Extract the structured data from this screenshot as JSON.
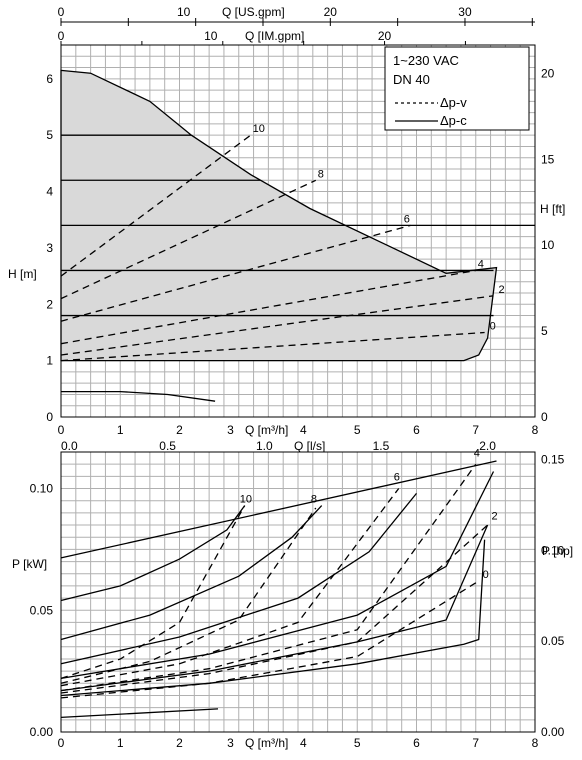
{
  "chart_data": [
    {
      "type": "line",
      "title": "",
      "legend": {
        "lines": [
          "1~230 VAC",
          "DN 40"
        ],
        "entries": [
          {
            "label": "Δp-v",
            "style": "dashed"
          },
          {
            "label": "Δp-c",
            "style": "solid"
          }
        ],
        "placement": "top-right"
      },
      "xlabel": "Q [m³/h]",
      "ylabel": "H [m]",
      "y2label": "H [ft]",
      "top_axes": [
        {
          "label": "Q [US.gpm]",
          "ticks": [
            "0",
            "10",
            "20",
            "30"
          ],
          "max": 35.2
        },
        {
          "label": "Q [IM.gpm]",
          "ticks": [
            "0",
            "10",
            "20"
          ],
          "max": 29.3
        }
      ],
      "xlim": [
        0,
        8
      ],
      "ylim": [
        0,
        6.6
      ],
      "x_ticks": [
        "0",
        "1",
        "2",
        "3",
        "4",
        "5",
        "6",
        "7",
        "8"
      ],
      "y_ticks": [
        "0",
        "1",
        "2",
        "3",
        "4",
        "5",
        "6"
      ],
      "y2_ticks": [
        "0",
        "5",
        "10",
        "15",
        "20"
      ],
      "envelope": {
        "x": [
          0,
          0.5,
          1.5,
          2.2,
          3.2,
          4.2,
          5.4,
          6.5,
          7.35,
          7.2,
          7.05,
          6.8,
          0
        ],
        "y": [
          6.15,
          6.1,
          5.6,
          5.0,
          4.3,
          3.7,
          3.1,
          2.55,
          2.65,
          1.4,
          1.1,
          1.0,
          1.0
        ]
      },
      "constant_pressure": [
        {
          "setpoint": "10",
          "head": 5.0
        },
        {
          "setpoint": "8",
          "head": 4.2
        },
        {
          "setpoint": "6",
          "head": 3.4
        },
        {
          "setpoint": "4",
          "head": 2.6
        },
        {
          "setpoint": "2",
          "head": 1.8
        }
      ],
      "proportional_pressure": [
        {
          "setpoint": "10",
          "x": [
            0,
            3.2
          ],
          "y": [
            2.5,
            5.0
          ]
        },
        {
          "setpoint": "8",
          "x": [
            0,
            4.3
          ],
          "y": [
            2.1,
            4.2
          ]
        },
        {
          "setpoint": "6",
          "x": [
            0,
            5.9
          ],
          "y": [
            1.7,
            3.4
          ]
        },
        {
          "setpoint": "4",
          "x": [
            0,
            7.0
          ],
          "y": [
            1.3,
            2.6
          ]
        },
        {
          "setpoint": "2",
          "x": [
            0,
            7.3
          ],
          "y": [
            1.1,
            2.15
          ]
        },
        {
          "setpoint": "0",
          "x": [
            0,
            7.15
          ],
          "y": [
            1.0,
            1.5
          ]
        }
      ],
      "min_curve": {
        "x": [
          0,
          1.0,
          1.8,
          2.6
        ],
        "y": [
          0.45,
          0.45,
          0.4,
          0.28
        ]
      },
      "curve_labels": [
        "10",
        "8",
        "6",
        "4",
        "2",
        "0"
      ]
    },
    {
      "type": "line",
      "title": "",
      "xlabel": "Q [m³/h]",
      "x2label": "Q [l/s]",
      "ylabel": "P [kW]",
      "y2label": "P [hp]",
      "xlim": [
        0,
        8
      ],
      "ylim": [
        0,
        0.115
      ],
      "x_ticks": [
        "0",
        "1",
        "2",
        "3",
        "4",
        "5",
        "6",
        "7",
        "8"
      ],
      "x2_ticks": [
        "0.0",
        "0.5",
        "1.0",
        "1.5",
        "2.0"
      ],
      "y_ticks": [
        "0.00",
        "0.05",
        "0.10"
      ],
      "y2_ticks": [
        "0.00",
        "0.05",
        "0.10",
        "0.15"
      ],
      "max_power": {
        "x": [
          0,
          7.35
        ],
        "y": [
          0.0715,
          0.1113
        ]
      },
      "solid_curves": [
        {
          "setpoint": "10",
          "x": [
            0,
            1.0,
            2.0,
            2.8,
            3.1
          ],
          "y": [
            0.054,
            0.06,
            0.071,
            0.083,
            0.093
          ]
        },
        {
          "setpoint": "8",
          "x": [
            0,
            1.5,
            3.0,
            3.9,
            4.4
          ],
          "y": [
            0.038,
            0.048,
            0.064,
            0.08,
            0.093
          ]
        },
        {
          "setpoint": "6",
          "x": [
            0,
            2.0,
            4.0,
            5.2,
            6.0
          ],
          "y": [
            0.028,
            0.039,
            0.055,
            0.074,
            0.098
          ]
        },
        {
          "setpoint": "4",
          "x": [
            0,
            2.5,
            5.0,
            6.5,
            7.3
          ],
          "y": [
            0.022,
            0.032,
            0.048,
            0.068,
            0.107
          ]
        },
        {
          "setpoint": "2",
          "x": [
            0,
            2.5,
            5.0,
            6.5,
            7.2
          ],
          "y": [
            0.017,
            0.025,
            0.037,
            0.046,
            0.085
          ]
        },
        {
          "setpoint": "0",
          "x": [
            0,
            2.5,
            5.0,
            6.8,
            7.05,
            7.15
          ],
          "y": [
            0.015,
            0.02,
            0.028,
            0.036,
            0.038,
            0.079
          ]
        }
      ],
      "dashed_curves": [
        {
          "setpoint": "10",
          "x": [
            0,
            1.0,
            2.0,
            3.1
          ],
          "y": [
            0.022,
            0.03,
            0.045,
            0.093
          ]
        },
        {
          "setpoint": "8",
          "x": [
            0,
            1.5,
            3.0,
            4.3
          ],
          "y": [
            0.02,
            0.029,
            0.046,
            0.092
          ]
        },
        {
          "setpoint": "6",
          "x": [
            0,
            2.0,
            4.0,
            5.7
          ],
          "y": [
            0.019,
            0.028,
            0.045,
            0.1
          ]
        },
        {
          "setpoint": "4",
          "x": [
            0,
            2.5,
            5.0,
            7.0
          ],
          "y": [
            0.017,
            0.026,
            0.042,
            0.11
          ]
        },
        {
          "setpoint": "2",
          "x": [
            0,
            2.5,
            5.0,
            7.2
          ],
          "y": [
            0.016,
            0.024,
            0.037,
            0.085
          ]
        },
        {
          "setpoint": "0",
          "x": [
            0,
            2.5,
            5.0,
            7.05
          ],
          "y": [
            0.014,
            0.02,
            0.031,
            0.062
          ]
        }
      ],
      "min_curve": {
        "x": [
          0,
          2.65
        ],
        "y": [
          0.006,
          0.0095
        ]
      },
      "curve_labels": [
        "10",
        "8",
        "6",
        "4",
        "2",
        "0"
      ]
    }
  ]
}
